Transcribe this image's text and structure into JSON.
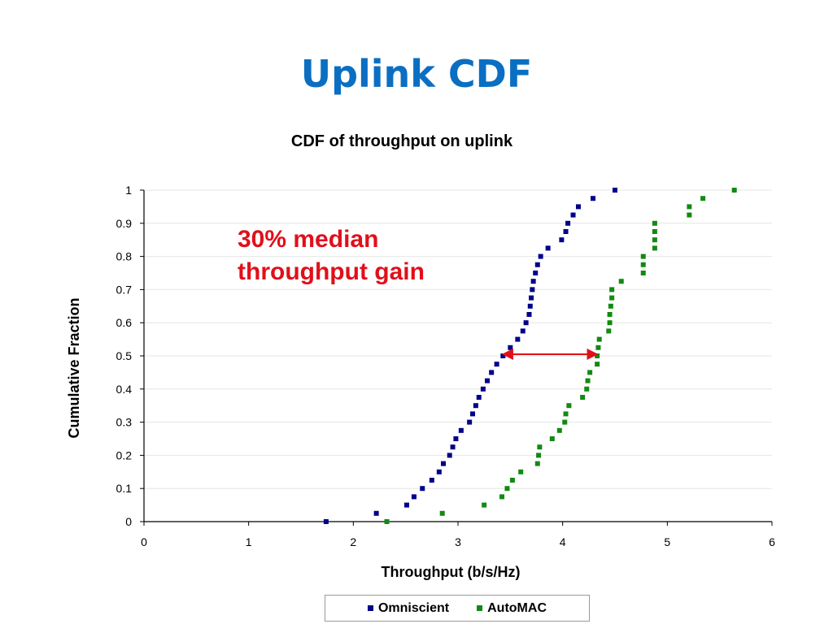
{
  "slide": {
    "title": "Uplink CDF"
  },
  "annotation": {
    "line1": "30% median",
    "line2": "throughput gain"
  },
  "colors": {
    "title": "#0a6fc2",
    "omniscient": "#00008b",
    "automac": "#118a11",
    "annotation": "#e0101a"
  },
  "chart_data": {
    "type": "scatter",
    "title": "CDF of throughput on uplink",
    "xlabel": "Throughput (b/s/Hz)",
    "ylabel": "Cumulative Fraction",
    "xlim": [
      0,
      6
    ],
    "ylim": [
      0,
      1
    ],
    "xticks": [
      "0",
      "1",
      "2",
      "3",
      "4",
      "5",
      "6"
    ],
    "yticks": [
      "0",
      "0.1",
      "0.2",
      "0.3",
      "0.4",
      "0.5",
      "0.6",
      "0.7",
      "0.8",
      "0.9",
      "1"
    ],
    "grid": "horizontal",
    "legend_position": "bottom",
    "series": [
      {
        "name": "Omniscient",
        "color": "#00008b",
        "points": [
          [
            1.74,
            0.0
          ],
          [
            2.22,
            0.025
          ],
          [
            2.51,
            0.05
          ],
          [
            2.58,
            0.075
          ],
          [
            2.66,
            0.1
          ],
          [
            2.75,
            0.125
          ],
          [
            2.82,
            0.15
          ],
          [
            2.86,
            0.175
          ],
          [
            2.92,
            0.2
          ],
          [
            2.95,
            0.225
          ],
          [
            2.98,
            0.25
          ],
          [
            3.03,
            0.275
          ],
          [
            3.11,
            0.3
          ],
          [
            3.14,
            0.325
          ],
          [
            3.17,
            0.35
          ],
          [
            3.2,
            0.375
          ],
          [
            3.24,
            0.4
          ],
          [
            3.28,
            0.425
          ],
          [
            3.32,
            0.45
          ],
          [
            3.37,
            0.475
          ],
          [
            3.43,
            0.5
          ],
          [
            3.5,
            0.525
          ],
          [
            3.57,
            0.55
          ],
          [
            3.62,
            0.575
          ],
          [
            3.65,
            0.6
          ],
          [
            3.68,
            0.625
          ],
          [
            3.69,
            0.65
          ],
          [
            3.7,
            0.675
          ],
          [
            3.71,
            0.7
          ],
          [
            3.72,
            0.725
          ],
          [
            3.74,
            0.75
          ],
          [
            3.76,
            0.775
          ],
          [
            3.79,
            0.8
          ],
          [
            3.86,
            0.825
          ],
          [
            3.99,
            0.85
          ],
          [
            4.03,
            0.875
          ],
          [
            4.05,
            0.9
          ],
          [
            4.1,
            0.925
          ],
          [
            4.15,
            0.95
          ],
          [
            4.29,
            0.975
          ],
          [
            4.5,
            1.0
          ]
        ]
      },
      {
        "name": "AutoMAC",
        "color": "#118a11",
        "points": [
          [
            2.32,
            0.0
          ],
          [
            2.85,
            0.025
          ],
          [
            3.25,
            0.05
          ],
          [
            3.42,
            0.075
          ],
          [
            3.47,
            0.1
          ],
          [
            3.52,
            0.125
          ],
          [
            3.6,
            0.15
          ],
          [
            3.76,
            0.175
          ],
          [
            3.77,
            0.2
          ],
          [
            3.78,
            0.225
          ],
          [
            3.9,
            0.25
          ],
          [
            3.97,
            0.275
          ],
          [
            4.02,
            0.3
          ],
          [
            4.03,
            0.325
          ],
          [
            4.06,
            0.35
          ],
          [
            4.19,
            0.375
          ],
          [
            4.23,
            0.4
          ],
          [
            4.24,
            0.425
          ],
          [
            4.26,
            0.45
          ],
          [
            4.33,
            0.475
          ],
          [
            4.33,
            0.5
          ],
          [
            4.34,
            0.525
          ],
          [
            4.35,
            0.55
          ],
          [
            4.44,
            0.575
          ],
          [
            4.45,
            0.6
          ],
          [
            4.45,
            0.625
          ],
          [
            4.46,
            0.65
          ],
          [
            4.47,
            0.675
          ],
          [
            4.47,
            0.7
          ],
          [
            4.56,
            0.725
          ],
          [
            4.77,
            0.75
          ],
          [
            4.77,
            0.775
          ],
          [
            4.77,
            0.8
          ],
          [
            4.88,
            0.825
          ],
          [
            4.88,
            0.85
          ],
          [
            4.88,
            0.875
          ],
          [
            4.88,
            0.9
          ],
          [
            5.21,
            0.925
          ],
          [
            5.21,
            0.95
          ],
          [
            5.34,
            0.975
          ],
          [
            5.64,
            1.0
          ]
        ]
      }
    ],
    "arrow": {
      "from": [
        3.43,
        0.505
      ],
      "to": [
        4.33,
        0.505
      ]
    }
  }
}
